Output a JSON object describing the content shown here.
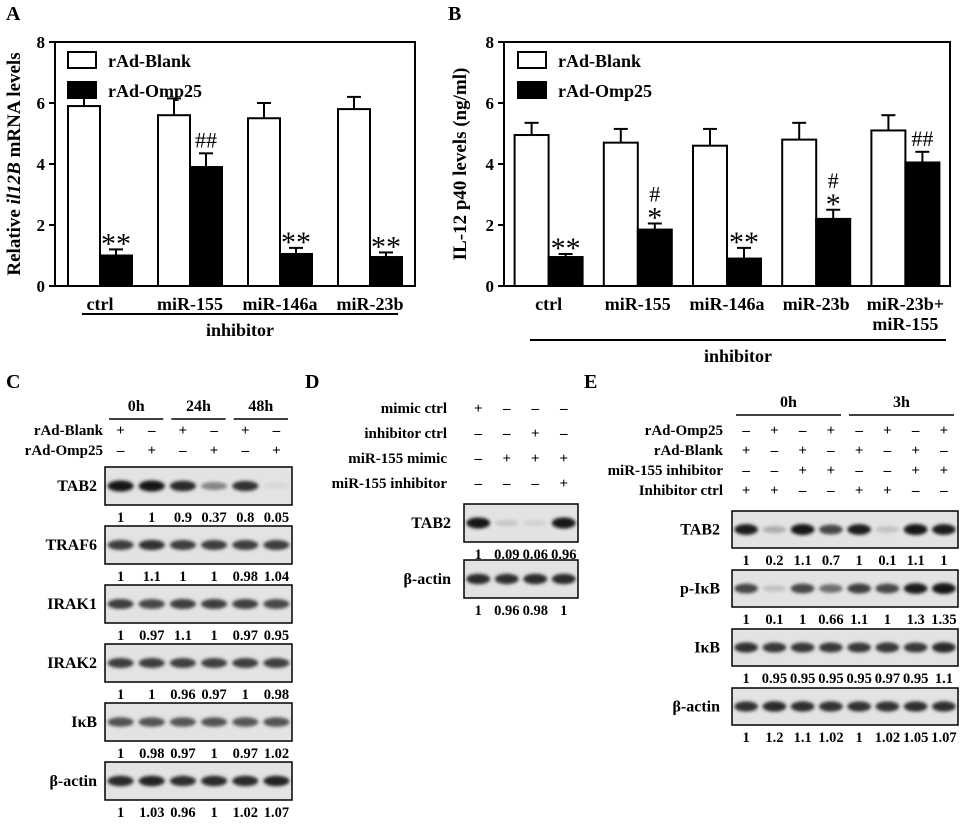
{
  "panels": {
    "A": "A",
    "B": "B",
    "C": "C",
    "D": "D",
    "E": "E"
  },
  "chart_data": [
    {
      "id": "A",
      "type": "bar",
      "title": "",
      "ylabel_pre": "Relative ",
      "ylabel_italic": "il12B",
      "ylabel_post": " mRNA levels",
      "xlabel": "inhibitor",
      "ylim": [
        0,
        8
      ],
      "yticks": [
        "0",
        "2",
        "4",
        "6",
        "8"
      ],
      "categories": [
        "ctrl",
        "miR-155",
        "miR-146a",
        "miR-23b"
      ],
      "series": [
        {
          "name": "rAd-Blank",
          "values": [
            5.9,
            5.6,
            5.5,
            5.8
          ],
          "errors": [
            0.6,
            0.55,
            0.5,
            0.4
          ],
          "fill": "#ffffff"
        },
        {
          "name": "rAd-Omp25",
          "values": [
            1.0,
            3.9,
            1.05,
            0.95
          ],
          "errors": [
            0.2,
            0.45,
            0.2,
            0.15
          ],
          "fill": "#000000"
        }
      ],
      "annotations": [
        {
          "category": 0,
          "series": 1,
          "labels": [
            "**"
          ]
        },
        {
          "category": 1,
          "series": 1,
          "labels": [
            "##"
          ]
        },
        {
          "category": 2,
          "series": 1,
          "labels": [
            "**"
          ]
        },
        {
          "category": 3,
          "series": 1,
          "labels": [
            "**"
          ]
        }
      ]
    },
    {
      "id": "B",
      "type": "bar",
      "title": "",
      "ylabel_pre": "IL-12 p40 levels (ng/ml)",
      "ylabel_italic": "",
      "ylabel_post": "",
      "xlabel": "inhibitor",
      "ylim": [
        0,
        8
      ],
      "yticks": [
        "0",
        "2",
        "4",
        "6",
        "8"
      ],
      "categories": [
        "ctrl",
        "miR-155",
        "miR-146a",
        "miR-23b",
        "miR-23b+\nmiR-155"
      ],
      "series": [
        {
          "name": "rAd-Blank",
          "values": [
            4.95,
            4.7,
            4.6,
            4.8,
            5.1
          ],
          "errors": [
            0.4,
            0.45,
            0.55,
            0.55,
            0.5
          ],
          "fill": "#ffffff"
        },
        {
          "name": "rAd-Omp25",
          "values": [
            0.95,
            1.85,
            0.9,
            2.2,
            4.05
          ],
          "errors": [
            0.1,
            0.2,
            0.35,
            0.3,
            0.35
          ],
          "fill": "#000000"
        }
      ],
      "annotations": [
        {
          "category": 0,
          "series": 1,
          "labels": [
            "**"
          ]
        },
        {
          "category": 1,
          "series": 1,
          "labels": [
            "#",
            "*"
          ]
        },
        {
          "category": 2,
          "series": 1,
          "labels": [
            "**"
          ]
        },
        {
          "category": 3,
          "series": 1,
          "labels": [
            "#",
            "*"
          ]
        },
        {
          "category": 4,
          "series": 1,
          "labels": [
            "##"
          ]
        }
      ]
    }
  ],
  "blots": {
    "C": {
      "times": [
        "0h",
        "24h",
        "48h"
      ],
      "conditions": [
        {
          "label": "rAd-Blank",
          "marks": [
            "+",
            "–",
            "+",
            "–",
            "+",
            "–"
          ]
        },
        {
          "label": "rAd-Omp25",
          "marks": [
            "–",
            "+",
            "–",
            "+",
            "–",
            "+"
          ]
        }
      ],
      "bands": [
        {
          "label": "TAB2",
          "quant": [
            "1",
            "1",
            "0.9",
            "0.37",
            "0.8",
            "0.05"
          ],
          "intensity": [
            1,
            1,
            0.9,
            0.45,
            0.85,
            0.05
          ]
        },
        {
          "label": "TRAF6",
          "quant": [
            "1",
            "1.1",
            "1",
            "1",
            "0.98",
            "1.04"
          ],
          "intensity": [
            0.8,
            0.85,
            0.8,
            0.8,
            0.8,
            0.8
          ]
        },
        {
          "label": "IRAK1",
          "quant": [
            "1",
            "0.97",
            "1.1",
            "1",
            "0.97",
            "0.95"
          ],
          "intensity": [
            0.8,
            0.75,
            0.8,
            0.8,
            0.78,
            0.75
          ]
        },
        {
          "label": "IRAK2",
          "quant": [
            "1",
            "1",
            "0.96",
            "0.97",
            "1",
            "0.98"
          ],
          "intensity": [
            0.8,
            0.8,
            0.78,
            0.78,
            0.8,
            0.78
          ]
        },
        {
          "label": "IκB",
          "quant": [
            "1",
            "0.98",
            "0.97",
            "1",
            "0.97",
            "1.02"
          ],
          "intensity": [
            0.7,
            0.7,
            0.68,
            0.7,
            0.68,
            0.7
          ]
        },
        {
          "label": "β-actin",
          "quant": [
            "1",
            "1.03",
            "0.96",
            "1",
            "1.02",
            "1.07"
          ],
          "intensity": [
            0.9,
            0.92,
            0.88,
            0.9,
            0.9,
            0.92
          ]
        }
      ]
    },
    "D": {
      "conditions": [
        {
          "label": "mimic ctrl",
          "marks": [
            "+",
            "–",
            "–",
            "–"
          ]
        },
        {
          "label": "inhibitor ctrl",
          "marks": [
            "–",
            "–",
            "+",
            "–"
          ]
        },
        {
          "label": "miR-155 mimic",
          "marks": [
            "–",
            "+",
            "+",
            "+"
          ]
        },
        {
          "label": "miR-155  inhibitor",
          "marks": [
            "–",
            "–",
            "–",
            "+"
          ]
        }
      ],
      "bands": [
        {
          "label": "TAB2",
          "quant": [
            "1",
            "0.09",
            "0.06",
            "0.96"
          ],
          "intensity": [
            1,
            0.12,
            0.08,
            1
          ]
        },
        {
          "label": "β-actin",
          "quant": [
            "1",
            "0.96",
            "0.98",
            "1"
          ],
          "intensity": [
            0.9,
            0.88,
            0.9,
            0.9
          ]
        }
      ]
    },
    "E": {
      "times": [
        "0h",
        "3h"
      ],
      "conditions": [
        {
          "label": "rAd-Omp25",
          "marks": [
            "–",
            "+",
            "–",
            "+",
            "–",
            "+",
            "–",
            "+"
          ]
        },
        {
          "label": "rAd-Blank",
          "marks": [
            "+",
            "–",
            "+",
            "–",
            "+",
            "–",
            "+",
            "–"
          ]
        },
        {
          "label": "miR-155 inhibitor",
          "marks": [
            "–",
            "–",
            "+",
            "+",
            "–",
            "–",
            "+",
            "+"
          ]
        },
        {
          "label": "Inhibitor ctrl",
          "marks": [
            "+",
            "+",
            "–",
            "–",
            "+",
            "+",
            "–",
            "–"
          ]
        }
      ],
      "bands": [
        {
          "label": "TAB2",
          "quant": [
            "1",
            "0.2",
            "1.1",
            "0.7",
            "1",
            "0.1",
            "1.1",
            "1"
          ],
          "intensity": [
            0.95,
            0.25,
            1,
            0.75,
            0.95,
            0.15,
            1,
            0.95
          ]
        },
        {
          "label": "p-IκB",
          "quant": [
            "1",
            "0.1",
            "1",
            "0.66",
            "1.1",
            "1",
            "1.3",
            "1.35"
          ],
          "intensity": [
            0.75,
            0.15,
            0.75,
            0.55,
            0.8,
            0.75,
            0.95,
            1
          ]
        },
        {
          "label": "IκB",
          "quant": [
            "1",
            "0.95",
            "0.95",
            "0.95",
            "0.95",
            "0.97",
            "0.95",
            "1.1"
          ],
          "intensity": [
            0.85,
            0.82,
            0.82,
            0.82,
            0.82,
            0.83,
            0.82,
            0.9
          ]
        },
        {
          "label": "β-actin",
          "quant": [
            "1",
            "1.2",
            "1.1",
            "1.02",
            "1",
            "1.02",
            "1.05",
            "1.07"
          ],
          "intensity": [
            0.85,
            0.9,
            0.88,
            0.86,
            0.85,
            0.86,
            0.87,
            0.88
          ]
        }
      ]
    }
  }
}
